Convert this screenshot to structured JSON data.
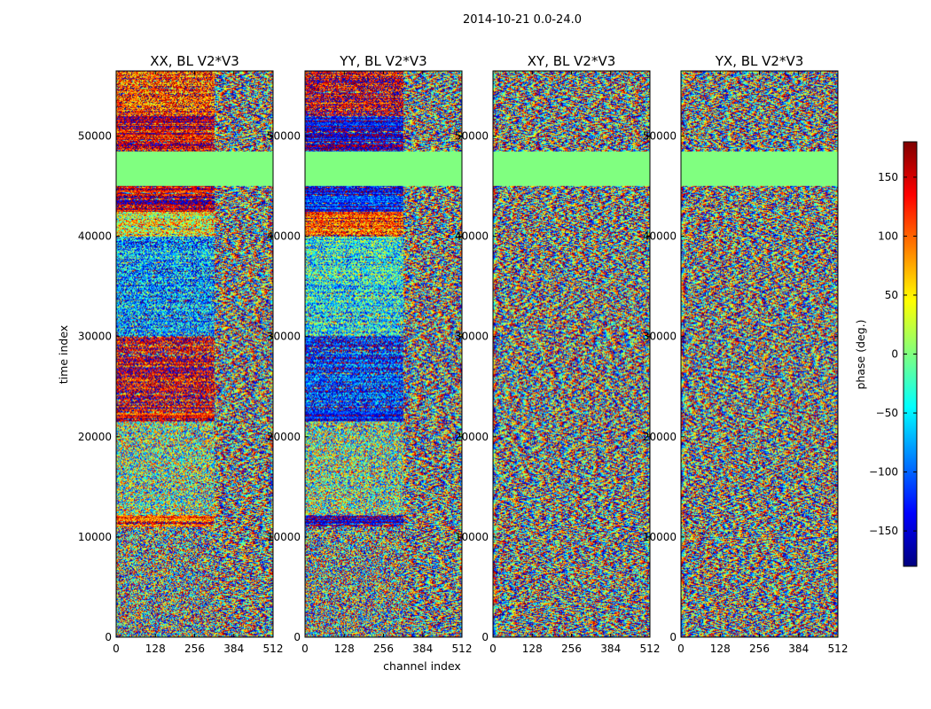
{
  "chart_data": {
    "type": "heatmap",
    "suptitle": "2014-10-21 0.0-24.0",
    "xlabel": "channel index",
    "ylabel": "time index",
    "xlim": [
      0,
      512
    ],
    "ylim": [
      0,
      56500
    ],
    "x_ticks": [
      0,
      128,
      256,
      384,
      512
    ],
    "y_ticks": [
      0,
      10000,
      20000,
      30000,
      40000,
      50000
    ],
    "colorbar": {
      "label": "phase (deg.)",
      "range": [
        -180,
        180
      ],
      "ticks": [
        -150,
        -100,
        -50,
        0,
        50,
        100,
        150
      ],
      "tick_labels": [
        "−150",
        "−100",
        "−50",
        "0",
        "50",
        "100",
        "150"
      ],
      "colormap": "jet",
      "colors": [
        "#00007f",
        "#0000ff",
        "#007fff",
        "#00ffff",
        "#7fff7f",
        "#ffff00",
        "#ff7f00",
        "#ff0000",
        "#7f0000"
      ]
    },
    "flagged_block": {
      "time_range": [
        45000,
        48500
      ],
      "phase_deg": 0
    },
    "panels": [
      {
        "title": "XX, BL V2*V3",
        "coherent_channel_limit": 320,
        "bands": [
          {
            "time_range": [
              0,
              11000
            ],
            "mean_phase": 0,
            "noise": 0.97
          },
          {
            "time_range": [
              11000,
              12200
            ],
            "mean_phase": 120,
            "noise": 0.35
          },
          {
            "time_range": [
              12200,
              21500
            ],
            "mean_phase": 0,
            "noise": 0.75
          },
          {
            "time_range": [
              21500,
              22500
            ],
            "mean_phase": 140,
            "noise": 0.3
          },
          {
            "time_range": [
              22500,
              30000
            ],
            "mean_phase": 150,
            "noise": 0.45
          },
          {
            "time_range": [
              30000,
              40000
            ],
            "mean_phase": -80,
            "noise": 0.55
          },
          {
            "time_range": [
              40000,
              42500
            ],
            "mean_phase": 40,
            "noise": 0.55
          },
          {
            "time_range": [
              42500,
              45000
            ],
            "mean_phase": 165,
            "noise": 0.3
          },
          {
            "time_range": [
              48500,
              52000
            ],
            "mean_phase": 150,
            "noise": 0.35
          },
          {
            "time_range": [
              52000,
              56500
            ],
            "mean_phase": 110,
            "noise": 0.5
          }
        ]
      },
      {
        "title": "YY, BL V2*V3",
        "coherent_channel_limit": 320,
        "bands": [
          {
            "time_range": [
              0,
              11000
            ],
            "mean_phase": 0,
            "noise": 0.97
          },
          {
            "time_range": [
              11000,
              12200
            ],
            "mean_phase": -150,
            "noise": 0.3
          },
          {
            "time_range": [
              12200,
              21500
            ],
            "mean_phase": 0,
            "noise": 0.75
          },
          {
            "time_range": [
              21500,
              22500
            ],
            "mean_phase": -140,
            "noise": 0.3
          },
          {
            "time_range": [
              22500,
              30000
            ],
            "mean_phase": -120,
            "noise": 0.45
          },
          {
            "time_range": [
              30000,
              40000
            ],
            "mean_phase": -40,
            "noise": 0.55
          },
          {
            "time_range": [
              40000,
              42500
            ],
            "mean_phase": 110,
            "noise": 0.4
          },
          {
            "time_range": [
              42500,
              45000
            ],
            "mean_phase": -130,
            "noise": 0.3
          },
          {
            "time_range": [
              48500,
              52000
            ],
            "mean_phase": -150,
            "noise": 0.3
          },
          {
            "time_range": [
              52000,
              56500
            ],
            "mean_phase": 150,
            "noise": 0.45
          }
        ]
      },
      {
        "title": "XY, BL V2*V3",
        "coherent_channel_limit": 0,
        "bands": [
          {
            "time_range": [
              0,
              11000
            ],
            "mean_phase": 0,
            "noise": 1.0
          },
          {
            "time_range": [
              11000,
              12200
            ],
            "mean_phase": 20,
            "noise": 0.5
          },
          {
            "time_range": [
              12200,
              45000
            ],
            "mean_phase": 0,
            "noise": 0.95
          },
          {
            "time_range": [
              48500,
              56500
            ],
            "mean_phase": 0,
            "noise": 0.95
          }
        ]
      },
      {
        "title": "YX, BL V2*V3",
        "coherent_channel_limit": 0,
        "bands": [
          {
            "time_range": [
              0,
              11000
            ],
            "mean_phase": 0,
            "noise": 1.0
          },
          {
            "time_range": [
              11000,
              12200
            ],
            "mean_phase": 20,
            "noise": 0.6
          },
          {
            "time_range": [
              12200,
              45000
            ],
            "mean_phase": 0,
            "noise": 0.95
          },
          {
            "time_range": [
              48500,
              56500
            ],
            "mean_phase": 0,
            "noise": 0.95
          }
        ]
      }
    ]
  }
}
